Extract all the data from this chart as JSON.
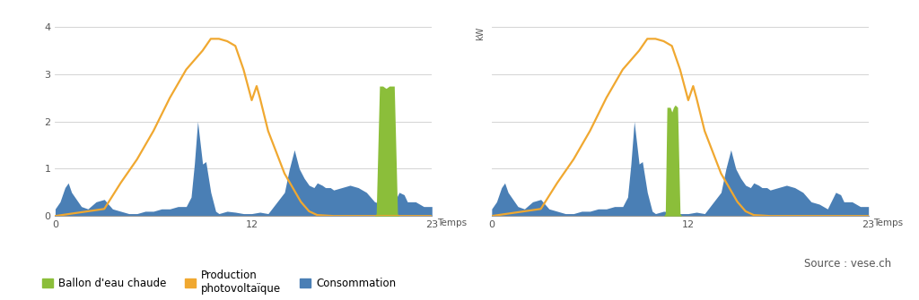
{
  "background_color": "#ffffff",
  "xlim": [
    0,
    23
  ],
  "ylim": [
    0,
    4
  ],
  "yticks": [
    0,
    1,
    2,
    3,
    4
  ],
  "xticks": [
    0,
    12,
    23
  ],
  "xlabel": "Temps",
  "ylabel": "kW",
  "grid_color": "#cccccc",
  "orange_color": "#f0a830",
  "blue_color": "#4a7fb5",
  "green_color": "#8bbe3a",
  "axis_color": "#999999",
  "text_color": "#555555",
  "legend_labels": [
    "Ballon d'eau chaude",
    "Production\nphotovoltaïque",
    "Consommation"
  ],
  "source_text": "Source : vese.ch",
  "chart1": {
    "solar": [
      [
        0,
        0
      ],
      [
        1,
        0.05
      ],
      [
        2,
        0.1
      ],
      [
        3,
        0.15
      ],
      [
        4,
        0.7
      ],
      [
        5,
        1.2
      ],
      [
        6,
        1.8
      ],
      [
        7,
        2.5
      ],
      [
        8,
        3.1
      ],
      [
        9,
        3.5
      ],
      [
        9.5,
        3.75
      ],
      [
        10,
        3.75
      ],
      [
        10.5,
        3.7
      ],
      [
        11,
        3.6
      ],
      [
        11.5,
        3.1
      ],
      [
        12,
        2.45
      ],
      [
        12.3,
        2.75
      ],
      [
        12.5,
        2.5
      ],
      [
        13,
        1.8
      ],
      [
        14,
        0.9
      ],
      [
        15,
        0.3
      ],
      [
        15.5,
        0.1
      ],
      [
        16,
        0.02
      ],
      [
        17,
        0
      ],
      [
        23,
        0
      ]
    ],
    "consumption": [
      [
        0,
        0.15
      ],
      [
        0.3,
        0.3
      ],
      [
        0.6,
        0.6
      ],
      [
        0.8,
        0.7
      ],
      [
        1.0,
        0.5
      ],
      [
        1.3,
        0.35
      ],
      [
        1.6,
        0.2
      ],
      [
        2,
        0.15
      ],
      [
        2.5,
        0.3
      ],
      [
        3,
        0.35
      ],
      [
        3.5,
        0.15
      ],
      [
        4,
        0.1
      ],
      [
        4.5,
        0.05
      ],
      [
        5,
        0.05
      ],
      [
        5.5,
        0.1
      ],
      [
        6,
        0.1
      ],
      [
        6.5,
        0.15
      ],
      [
        7,
        0.15
      ],
      [
        7.5,
        0.2
      ],
      [
        8,
        0.2
      ],
      [
        8.3,
        0.4
      ],
      [
        8.5,
        1.1
      ],
      [
        8.7,
        2.0
      ],
      [
        9,
        1.1
      ],
      [
        9.2,
        1.15
      ],
      [
        9.5,
        0.5
      ],
      [
        9.8,
        0.1
      ],
      [
        10,
        0.05
      ],
      [
        10.5,
        0.1
      ],
      [
        11,
        0.08
      ],
      [
        11.5,
        0.05
      ],
      [
        12,
        0.05
      ],
      [
        12.5,
        0.08
      ],
      [
        13,
        0.05
      ],
      [
        14,
        0.5
      ],
      [
        14.3,
        1.0
      ],
      [
        14.6,
        1.4
      ],
      [
        14.9,
        1.0
      ],
      [
        15.2,
        0.8
      ],
      [
        15.5,
        0.65
      ],
      [
        15.8,
        0.6
      ],
      [
        16,
        0.7
      ],
      [
        16.3,
        0.65
      ],
      [
        16.5,
        0.6
      ],
      [
        16.8,
        0.6
      ],
      [
        17,
        0.55
      ],
      [
        17.5,
        0.6
      ],
      [
        18,
        0.65
      ],
      [
        18.5,
        0.6
      ],
      [
        19,
        0.5
      ],
      [
        19.5,
        0.3
      ],
      [
        20,
        0.25
      ],
      [
        20.5,
        0.15
      ],
      [
        21,
        0.5
      ],
      [
        21.3,
        0.45
      ],
      [
        21.5,
        0.3
      ],
      [
        22,
        0.3
      ],
      [
        22.5,
        0.2
      ],
      [
        23,
        0.2
      ]
    ],
    "ballon": [
      [
        0,
        0
      ],
      [
        19.5,
        0
      ],
      [
        19.6,
        0.05
      ],
      [
        19.8,
        2.75
      ],
      [
        20.0,
        2.75
      ],
      [
        20.2,
        2.7
      ],
      [
        20.4,
        2.75
      ],
      [
        20.7,
        2.75
      ],
      [
        20.9,
        0.05
      ],
      [
        21.0,
        0
      ],
      [
        23,
        0
      ]
    ]
  },
  "chart2": {
    "solar": [
      [
        0,
        0
      ],
      [
        1,
        0.05
      ],
      [
        2,
        0.1
      ],
      [
        3,
        0.15
      ],
      [
        4,
        0.7
      ],
      [
        5,
        1.2
      ],
      [
        6,
        1.8
      ],
      [
        7,
        2.5
      ],
      [
        8,
        3.1
      ],
      [
        9,
        3.5
      ],
      [
        9.5,
        3.75
      ],
      [
        10,
        3.75
      ],
      [
        10.5,
        3.7
      ],
      [
        11,
        3.6
      ],
      [
        11.5,
        3.1
      ],
      [
        12,
        2.45
      ],
      [
        12.3,
        2.75
      ],
      [
        12.5,
        2.5
      ],
      [
        13,
        1.8
      ],
      [
        14,
        0.9
      ],
      [
        15,
        0.3
      ],
      [
        15.5,
        0.1
      ],
      [
        16,
        0.02
      ],
      [
        17,
        0
      ],
      [
        23,
        0
      ]
    ],
    "consumption": [
      [
        0,
        0.15
      ],
      [
        0.3,
        0.3
      ],
      [
        0.6,
        0.6
      ],
      [
        0.8,
        0.7
      ],
      [
        1.0,
        0.5
      ],
      [
        1.3,
        0.35
      ],
      [
        1.6,
        0.2
      ],
      [
        2,
        0.15
      ],
      [
        2.5,
        0.3
      ],
      [
        3,
        0.35
      ],
      [
        3.5,
        0.15
      ],
      [
        4,
        0.1
      ],
      [
        4.5,
        0.05
      ],
      [
        5,
        0.05
      ],
      [
        5.5,
        0.1
      ],
      [
        6,
        0.1
      ],
      [
        6.5,
        0.15
      ],
      [
        7,
        0.15
      ],
      [
        7.5,
        0.2
      ],
      [
        8,
        0.2
      ],
      [
        8.3,
        0.4
      ],
      [
        8.5,
        1.1
      ],
      [
        8.7,
        2.0
      ],
      [
        9,
        1.1
      ],
      [
        9.2,
        1.15
      ],
      [
        9.5,
        0.5
      ],
      [
        9.8,
        0.1
      ],
      [
        10,
        0.05
      ],
      [
        10.5,
        0.1
      ],
      [
        11,
        0.08
      ],
      [
        11.5,
        0.05
      ],
      [
        12,
        0.05
      ],
      [
        12.5,
        0.08
      ],
      [
        13,
        0.05
      ],
      [
        14,
        0.5
      ],
      [
        14.3,
        1.0
      ],
      [
        14.6,
        1.4
      ],
      [
        14.9,
        1.0
      ],
      [
        15.2,
        0.8
      ],
      [
        15.5,
        0.65
      ],
      [
        15.8,
        0.6
      ],
      [
        16,
        0.7
      ],
      [
        16.3,
        0.65
      ],
      [
        16.5,
        0.6
      ],
      [
        16.8,
        0.6
      ],
      [
        17,
        0.55
      ],
      [
        17.5,
        0.6
      ],
      [
        18,
        0.65
      ],
      [
        18.5,
        0.6
      ],
      [
        19,
        0.5
      ],
      [
        19.5,
        0.3
      ],
      [
        20,
        0.25
      ],
      [
        20.5,
        0.15
      ],
      [
        21,
        0.5
      ],
      [
        21.3,
        0.45
      ],
      [
        21.5,
        0.3
      ],
      [
        22,
        0.3
      ],
      [
        22.5,
        0.2
      ],
      [
        23,
        0.2
      ]
    ],
    "ballon": [
      [
        0,
        0
      ],
      [
        10.5,
        0
      ],
      [
        10.6,
        0.05
      ],
      [
        10.7,
        2.3
      ],
      [
        10.9,
        2.3
      ],
      [
        11.0,
        2.2
      ],
      [
        11.1,
        2.3
      ],
      [
        11.2,
        2.35
      ],
      [
        11.35,
        2.3
      ],
      [
        11.5,
        0.05
      ],
      [
        11.6,
        0
      ],
      [
        23,
        0
      ]
    ]
  }
}
